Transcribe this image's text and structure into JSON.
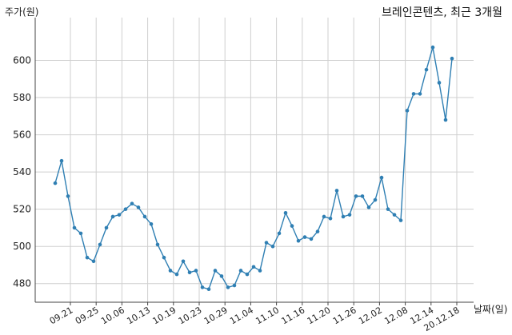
{
  "chart_data": {
    "type": "line",
    "title": "브레인콘텐츠, 최근 3개월",
    "ylabel": "주가(원)",
    "xlabel": "날짜(일)",
    "ylim": [
      470,
      623
    ],
    "yticks": [
      480,
      500,
      520,
      540,
      560,
      580,
      600
    ],
    "xtick_labels": [
      "09.21",
      "09.25",
      "10.06",
      "10.13",
      "10.19",
      "10.23",
      "10.29",
      "11.04",
      "11.10",
      "11.16",
      "11.20",
      "11.26",
      "12.02",
      "12.08",
      "12.14",
      "20.12.18"
    ],
    "grid": true,
    "line_color": "#2f7fb3",
    "series": [
      {
        "values": [
          534,
          546,
          527,
          510,
          507,
          494,
          492,
          501,
          510,
          516,
          517,
          520,
          523,
          521,
          516,
          512,
          501,
          494,
          487,
          485,
          492,
          486,
          487,
          478,
          477,
          487,
          484,
          478,
          479,
          487,
          485,
          489,
          487,
          502,
          500,
          507,
          518,
          511,
          503,
          505,
          504,
          508,
          516,
          515,
          530,
          516,
          517,
          527,
          527,
          521,
          525,
          537,
          520,
          517,
          514,
          573,
          582,
          582,
          595,
          607,
          588,
          568,
          601
        ]
      }
    ]
  }
}
